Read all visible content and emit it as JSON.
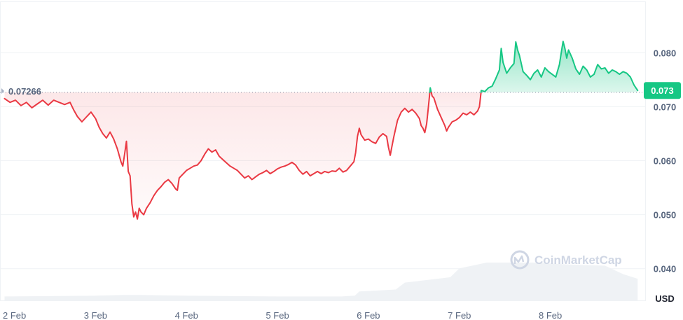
{
  "watermark": "CoinMarketCap",
  "chart_data": {
    "type": "area",
    "y_unit": "USD",
    "ylim": [
      0.034,
      0.0895
    ],
    "y_ticks": [
      {
        "value": 0.08,
        "label": "0.080"
      },
      {
        "value": 0.07,
        "label": "0.070"
      },
      {
        "value": 0.06,
        "label": "0.060"
      },
      {
        "value": 0.05,
        "label": "0.050"
      },
      {
        "value": 0.04,
        "label": "0.040"
      }
    ],
    "x_ticks": [
      {
        "value": 0.0,
        "label": "2 Feb"
      },
      {
        "value": 1.0,
        "label": "3 Feb"
      },
      {
        "value": 2.0,
        "label": "4 Feb"
      },
      {
        "value": 3.0,
        "label": "5 Feb"
      },
      {
        "value": 4.0,
        "label": "6 Feb"
      },
      {
        "value": 5.0,
        "label": "7 Feb"
      },
      {
        "value": 6.0,
        "label": "8 Feb"
      }
    ],
    "xlim": [
      -0.05,
      7.05
    ],
    "reference": {
      "value": 0.07266,
      "label": "0.07266"
    },
    "current": {
      "value": 0.073,
      "label": "0.073"
    },
    "colors": {
      "up": "#16c784",
      "down": "#ea3943",
      "volume": "#eff2f5",
      "grid": "#eff2f5"
    },
    "series": [
      {
        "points": [
          [
            0.0,
            0.0715
          ],
          [
            0.06,
            0.0708
          ],
          [
            0.12,
            0.0712
          ],
          [
            0.18,
            0.0702
          ],
          [
            0.24,
            0.0708
          ],
          [
            0.3,
            0.0698
          ],
          [
            0.36,
            0.0705
          ],
          [
            0.42,
            0.0712
          ],
          [
            0.48,
            0.0703
          ],
          [
            0.54,
            0.0712
          ],
          [
            0.6,
            0.0708
          ],
          [
            0.66,
            0.0704
          ],
          [
            0.72,
            0.0708
          ],
          [
            0.76,
            0.0694
          ],
          [
            0.8,
            0.0682
          ],
          [
            0.85,
            0.0672
          ],
          [
            0.9,
            0.0681
          ],
          [
            0.95,
            0.069
          ],
          [
            1.0,
            0.0678
          ],
          [
            1.04,
            0.0662
          ],
          [
            1.08,
            0.065
          ],
          [
            1.12,
            0.0642
          ],
          [
            1.16,
            0.0653
          ],
          [
            1.2,
            0.064
          ],
          [
            1.24,
            0.0622
          ],
          [
            1.28,
            0.0598
          ],
          [
            1.3,
            0.059
          ],
          [
            1.32,
            0.0612
          ],
          [
            1.34,
            0.0636
          ],
          [
            1.36,
            0.058
          ],
          [
            1.38,
            0.0572
          ],
          [
            1.4,
            0.052
          ],
          [
            1.42,
            0.0496
          ],
          [
            1.44,
            0.0505
          ],
          [
            1.46,
            0.0492
          ],
          [
            1.48,
            0.0512
          ],
          [
            1.5,
            0.0505
          ],
          [
            1.53,
            0.05
          ],
          [
            1.56,
            0.0512
          ],
          [
            1.6,
            0.0522
          ],
          [
            1.64,
            0.0535
          ],
          [
            1.68,
            0.0545
          ],
          [
            1.72,
            0.0552
          ],
          [
            1.76,
            0.056
          ],
          [
            1.8,
            0.0565
          ],
          [
            1.84,
            0.0558
          ],
          [
            1.88,
            0.0548
          ],
          [
            1.9,
            0.0545
          ],
          [
            1.92,
            0.0568
          ],
          [
            1.96,
            0.0575
          ],
          [
            2.0,
            0.0582
          ],
          [
            2.04,
            0.0586
          ],
          [
            2.08,
            0.059
          ],
          [
            2.12,
            0.0592
          ],
          [
            2.16,
            0.06
          ],
          [
            2.2,
            0.0612
          ],
          [
            2.24,
            0.0622
          ],
          [
            2.28,
            0.0616
          ],
          [
            2.32,
            0.062
          ],
          [
            2.36,
            0.0608
          ],
          [
            2.4,
            0.0602
          ],
          [
            2.44,
            0.0596
          ],
          [
            2.48,
            0.059
          ],
          [
            2.52,
            0.0586
          ],
          [
            2.56,
            0.0582
          ],
          [
            2.6,
            0.0575
          ],
          [
            2.64,
            0.0568
          ],
          [
            2.68,
            0.0572
          ],
          [
            2.72,
            0.0565
          ],
          [
            2.76,
            0.057
          ],
          [
            2.8,
            0.0575
          ],
          [
            2.84,
            0.0578
          ],
          [
            2.88,
            0.0582
          ],
          [
            2.92,
            0.0576
          ],
          [
            2.96,
            0.058
          ],
          [
            3.0,
            0.0585
          ],
          [
            3.04,
            0.0588
          ],
          [
            3.08,
            0.059
          ],
          [
            3.12,
            0.0593
          ],
          [
            3.16,
            0.0597
          ],
          [
            3.2,
            0.0592
          ],
          [
            3.24,
            0.0582
          ],
          [
            3.28,
            0.0575
          ],
          [
            3.32,
            0.058
          ],
          [
            3.36,
            0.0572
          ],
          [
            3.4,
            0.0576
          ],
          [
            3.44,
            0.058
          ],
          [
            3.48,
            0.0576
          ],
          [
            3.52,
            0.058
          ],
          [
            3.56,
            0.0578
          ],
          [
            3.6,
            0.0581
          ],
          [
            3.64,
            0.058
          ],
          [
            3.68,
            0.0586
          ],
          [
            3.72,
            0.0579
          ],
          [
            3.76,
            0.0582
          ],
          [
            3.8,
            0.059
          ],
          [
            3.84,
            0.0598
          ],
          [
            3.86,
            0.0615
          ],
          [
            3.88,
            0.0645
          ],
          [
            3.9,
            0.066
          ],
          [
            3.92,
            0.0648
          ],
          [
            3.96,
            0.0638
          ],
          [
            4.0,
            0.064
          ],
          [
            4.04,
            0.0635
          ],
          [
            4.08,
            0.0632
          ],
          [
            4.12,
            0.0644
          ],
          [
            4.16,
            0.065
          ],
          [
            4.2,
            0.0645
          ],
          [
            4.22,
            0.0625
          ],
          [
            4.24,
            0.061
          ],
          [
            4.26,
            0.0628
          ],
          [
            4.28,
            0.0645
          ],
          [
            4.3,
            0.066
          ],
          [
            4.32,
            0.0675
          ],
          [
            4.36,
            0.069
          ],
          [
            4.4,
            0.0697
          ],
          [
            4.44,
            0.069
          ],
          [
            4.48,
            0.0695
          ],
          [
            4.52,
            0.0688
          ],
          [
            4.56,
            0.0678
          ],
          [
            4.58,
            0.0665
          ],
          [
            4.6,
            0.066
          ],
          [
            4.62,
            0.0652
          ],
          [
            4.64,
            0.0668
          ],
          [
            4.66,
            0.07
          ],
          [
            4.68,
            0.0735
          ],
          [
            4.7,
            0.072
          ],
          [
            4.72,
            0.0716
          ],
          [
            4.76,
            0.0695
          ],
          [
            4.8,
            0.068
          ],
          [
            4.84,
            0.0665
          ],
          [
            4.86,
            0.0655
          ],
          [
            4.88,
            0.0662
          ],
          [
            4.92,
            0.0672
          ],
          [
            4.96,
            0.0675
          ],
          [
            5.0,
            0.068
          ],
          [
            5.04,
            0.0688
          ],
          [
            5.08,
            0.0685
          ],
          [
            5.12,
            0.069
          ],
          [
            5.16,
            0.0685
          ],
          [
            5.2,
            0.0692
          ],
          [
            5.22,
            0.07
          ],
          [
            5.24,
            0.073
          ],
          [
            5.28,
            0.0728
          ],
          [
            5.32,
            0.0735
          ],
          [
            5.36,
            0.0738
          ],
          [
            5.4,
            0.0752
          ],
          [
            5.44,
            0.0768
          ],
          [
            5.46,
            0.0808
          ],
          [
            5.48,
            0.0782
          ],
          [
            5.52,
            0.0762
          ],
          [
            5.56,
            0.0772
          ],
          [
            5.6,
            0.078
          ],
          [
            5.62,
            0.082
          ],
          [
            5.64,
            0.0805
          ],
          [
            5.66,
            0.0795
          ],
          [
            5.7,
            0.0765
          ],
          [
            5.74,
            0.0758
          ],
          [
            5.78,
            0.075
          ],
          [
            5.82,
            0.0762
          ],
          [
            5.86,
            0.0768
          ],
          [
            5.9,
            0.0755
          ],
          [
            5.94,
            0.0772
          ],
          [
            5.98,
            0.0765
          ],
          [
            6.02,
            0.076
          ],
          [
            6.06,
            0.0755
          ],
          [
            6.1,
            0.0778
          ],
          [
            6.12,
            0.08
          ],
          [
            6.14,
            0.0821
          ],
          [
            6.16,
            0.0808
          ],
          [
            6.18,
            0.079
          ],
          [
            6.2,
            0.0805
          ],
          [
            6.24,
            0.079
          ],
          [
            6.28,
            0.077
          ],
          [
            6.32,
            0.076
          ],
          [
            6.36,
            0.0775
          ],
          [
            6.4,
            0.0768
          ],
          [
            6.44,
            0.0755
          ],
          [
            6.48,
            0.076
          ],
          [
            6.52,
            0.0778
          ],
          [
            6.56,
            0.077
          ],
          [
            6.6,
            0.0772
          ],
          [
            6.64,
            0.0762
          ],
          [
            6.68,
            0.0768
          ],
          [
            6.72,
            0.0765
          ],
          [
            6.76,
            0.076
          ],
          [
            6.8,
            0.0765
          ],
          [
            6.84,
            0.0762
          ],
          [
            6.88,
            0.0755
          ],
          [
            6.92,
            0.074
          ],
          [
            6.96,
            0.073
          ]
        ]
      }
    ],
    "volume": [
      [
        0.0,
        0.12
      ],
      [
        0.5,
        0.13
      ],
      [
        1.0,
        0.14
      ],
      [
        1.3,
        0.16
      ],
      [
        1.5,
        0.16
      ],
      [
        2.0,
        0.14
      ],
      [
        2.5,
        0.13
      ],
      [
        3.0,
        0.12
      ],
      [
        3.5,
        0.12
      ],
      [
        3.7,
        0.12
      ],
      [
        3.85,
        0.14
      ],
      [
        3.9,
        0.25
      ],
      [
        4.3,
        0.3
      ],
      [
        4.4,
        0.48
      ],
      [
        4.9,
        0.62
      ],
      [
        5.0,
        0.85
      ],
      [
        5.3,
        1.0
      ],
      [
        5.8,
        1.0
      ],
      [
        6.2,
        0.95
      ],
      [
        6.6,
        0.92
      ],
      [
        6.8,
        0.7
      ],
      [
        6.96,
        0.58
      ]
    ]
  }
}
